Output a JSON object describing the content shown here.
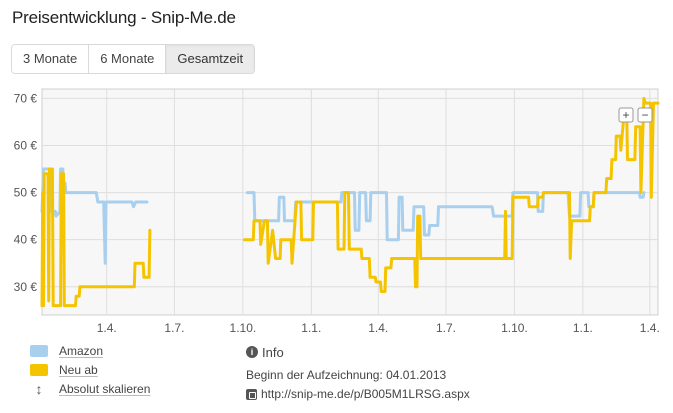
{
  "page": {
    "title": "Preisentwicklung - Snip-Me.de"
  },
  "tabs": [
    {
      "label": "3 Monate",
      "active": false
    },
    {
      "label": "6 Monate",
      "active": false
    },
    {
      "label": "Gesamtzeit",
      "active": true
    }
  ],
  "zoom": {
    "plus": "+",
    "minus": "−"
  },
  "legend": {
    "amazon": {
      "label": "Amazon",
      "color": "#a8cfee"
    },
    "neu": {
      "label": "Neu ab",
      "color": "#f5c400"
    },
    "scale": {
      "label": "Absolut skalieren",
      "icon": "updown-arrow-icon"
    }
  },
  "info": {
    "heading": "Info",
    "since": "Beginn der Aufzeichnung: 04.01.2013",
    "url": "http://snip-me.de/p/B005M1LRSG.aspx"
  },
  "chart_data": {
    "type": "line",
    "x_unit": "date",
    "xlim": [
      "2013-01-04",
      "2015-04-12"
    ],
    "ylim": [
      24,
      72
    ],
    "grid": true,
    "yticks": [
      30,
      40,
      50,
      60,
      70
    ],
    "ytick_labels": [
      "30 €",
      "40 €",
      "50 €",
      "60 €",
      "70 €"
    ],
    "xticks": [
      {
        "date": "2013-04-01",
        "label": "1.4."
      },
      {
        "date": "2013-07-01",
        "label": "1.7."
      },
      {
        "date": "2013-10-01",
        "label": "1.10."
      },
      {
        "date": "2014-01-01",
        "label": "1.1."
      },
      {
        "date": "2014-04-01",
        "label": "1.4."
      },
      {
        "date": "2014-07-01",
        "label": "1.7."
      },
      {
        "date": "2014-10-01",
        "label": "1.10."
      },
      {
        "date": "2015-01-01",
        "label": "1.1."
      },
      {
        "date": "2015-04-01",
        "label": "1.4."
      }
    ],
    "series": [
      {
        "name": "Amazon",
        "color": "#a8cfee",
        "points": [
          [
            "2013-01-04",
            46
          ],
          [
            "2013-01-06",
            55
          ],
          [
            "2013-01-14",
            55
          ],
          [
            "2013-01-15",
            46
          ],
          [
            "2013-01-22",
            46
          ],
          [
            "2013-01-23",
            45
          ],
          [
            "2013-01-28",
            46
          ],
          [
            "2013-01-29",
            55
          ],
          [
            "2013-02-01",
            55
          ],
          [
            "2013-02-02",
            51
          ],
          [
            "2013-02-04",
            52
          ],
          [
            "2013-02-05",
            50
          ],
          [
            "2013-03-18",
            50
          ],
          [
            "2013-03-20",
            48
          ],
          [
            "2013-03-28",
            48
          ],
          [
            "2013-03-30",
            35
          ],
          [
            "2013-03-31",
            48
          ],
          [
            "2013-04-20",
            48
          ],
          [
            "2013-05-05",
            48
          ],
          [
            "2013-05-07",
            47
          ],
          [
            "2013-05-10",
            48
          ],
          [
            "2013-05-25",
            48
          ],
          null,
          [
            "2013-10-07",
            50
          ],
          [
            "2013-10-16",
            50
          ],
          [
            "2013-10-17",
            44
          ],
          [
            "2013-11-18",
            44
          ],
          [
            "2013-11-19",
            49
          ],
          [
            "2013-11-25",
            49
          ],
          [
            "2013-11-26",
            44
          ],
          [
            "2013-12-10",
            44
          ],
          [
            "2013-12-11",
            48
          ],
          [
            "2014-02-10",
            48
          ],
          [
            "2014-02-11",
            50
          ],
          [
            "2014-02-28",
            50
          ],
          [
            "2014-03-01",
            42
          ],
          [
            "2014-03-06",
            42
          ],
          [
            "2014-03-07",
            50
          ],
          [
            "2014-03-15",
            50
          ],
          [
            "2014-03-16",
            44
          ],
          [
            "2014-03-21",
            44
          ],
          [
            "2014-03-22",
            50
          ],
          [
            "2014-04-12",
            50
          ],
          [
            "2014-04-13",
            40
          ],
          [
            "2014-04-28",
            40
          ],
          [
            "2014-04-29",
            49
          ],
          [
            "2014-05-03",
            49
          ],
          [
            "2014-05-04",
            42
          ],
          [
            "2014-05-18",
            42
          ],
          [
            "2014-05-19",
            47
          ],
          [
            "2014-06-01",
            47
          ],
          [
            "2014-06-02",
            41
          ],
          [
            "2014-06-08",
            41
          ],
          [
            "2014-06-09",
            43
          ],
          [
            "2014-06-20",
            43
          ],
          [
            "2014-06-21",
            47
          ],
          [
            "2014-09-01",
            47
          ],
          [
            "2014-09-03",
            45
          ],
          [
            "2014-09-28",
            45
          ],
          [
            "2014-09-29",
            50
          ],
          [
            "2014-11-01",
            50
          ],
          [
            "2014-11-02",
            46
          ],
          [
            "2014-11-08",
            46
          ],
          [
            "2014-11-09",
            50
          ],
          [
            "2014-12-12",
            50
          ],
          [
            "2014-12-14",
            45
          ],
          [
            "2014-12-28",
            45
          ],
          [
            "2014-12-29",
            50
          ],
          [
            "2015-01-08",
            50
          ],
          [
            "2015-01-09",
            47
          ],
          [
            "2015-01-15",
            47
          ],
          [
            "2015-01-16",
            50
          ],
          [
            "2015-03-18",
            50
          ],
          [
            "2015-03-19",
            49
          ],
          [
            "2015-03-23",
            49
          ],
          [
            "2015-03-24",
            50
          ]
        ]
      },
      {
        "name": "Neu ab",
        "color": "#f5c400",
        "points": [
          [
            "2013-01-04",
            26
          ],
          [
            "2013-01-05",
            50
          ],
          [
            "2013-01-06",
            26
          ],
          [
            "2013-01-07",
            54
          ],
          [
            "2013-01-12",
            54
          ],
          [
            "2013-01-13",
            27
          ],
          [
            "2013-01-14",
            55
          ],
          [
            "2013-01-18",
            55
          ],
          [
            "2013-01-19",
            26
          ],
          [
            "2013-01-29",
            26
          ],
          [
            "2013-01-30",
            54
          ],
          [
            "2013-02-02",
            54
          ],
          [
            "2013-02-03",
            26
          ],
          [
            "2013-02-18",
            26
          ],
          [
            "2013-02-19",
            28
          ],
          [
            "2013-02-23",
            28
          ],
          [
            "2013-02-24",
            30
          ],
          [
            "2013-05-08",
            30
          ],
          [
            "2013-05-09",
            35
          ],
          [
            "2013-05-20",
            35
          ],
          [
            "2013-05-21",
            32
          ],
          [
            "2013-05-28",
            32
          ],
          [
            "2013-05-29",
            42
          ],
          null,
          [
            "2013-10-03",
            40
          ],
          [
            "2013-10-15",
            40
          ],
          [
            "2013-10-16",
            44
          ],
          [
            "2013-10-24",
            44
          ],
          [
            "2013-10-25",
            39
          ],
          [
            "2013-10-30",
            44
          ],
          [
            "2013-11-03",
            44
          ],
          [
            "2013-11-04",
            35
          ],
          [
            "2013-11-10",
            42
          ],
          [
            "2013-11-14",
            36
          ],
          [
            "2013-11-20",
            36
          ],
          [
            "2013-11-21",
            40
          ],
          [
            "2013-12-05",
            40
          ],
          [
            "2013-12-06",
            35
          ],
          [
            "2013-12-12",
            48
          ],
          [
            "2013-12-18",
            48
          ],
          [
            "2013-12-19",
            40
          ],
          [
            "2014-01-03",
            40
          ],
          [
            "2014-01-04",
            48
          ],
          [
            "2014-02-05",
            48
          ],
          [
            "2014-02-06",
            38
          ],
          [
            "2014-02-14",
            38
          ],
          [
            "2014-02-15",
            50
          ],
          [
            "2014-02-20",
            50
          ],
          [
            "2014-02-21",
            38
          ],
          [
            "2014-03-09",
            38
          ],
          [
            "2014-03-10",
            36
          ],
          [
            "2014-03-20",
            36
          ],
          [
            "2014-03-21",
            32
          ],
          [
            "2014-03-28",
            32
          ],
          [
            "2014-03-29",
            31
          ],
          [
            "2014-04-04",
            31
          ],
          [
            "2014-04-05",
            29
          ],
          [
            "2014-04-10",
            29
          ],
          [
            "2014-04-11",
            34
          ],
          [
            "2014-04-18",
            34
          ],
          [
            "2014-04-19",
            36
          ],
          [
            "2014-05-20",
            36
          ],
          [
            "2014-05-21",
            30
          ],
          [
            "2014-05-23",
            30
          ],
          [
            "2014-05-24",
            45
          ],
          [
            "2014-05-27",
            45
          ],
          [
            "2014-05-28",
            36
          ],
          [
            "2014-09-18",
            36
          ],
          [
            "2014-09-19",
            46
          ],
          [
            "2014-09-20",
            36
          ],
          [
            "2014-09-28",
            36
          ],
          [
            "2014-09-29",
            49
          ],
          [
            "2014-10-20",
            49
          ],
          [
            "2014-10-21",
            47
          ],
          [
            "2014-11-01",
            47
          ],
          [
            "2014-11-02",
            49
          ],
          [
            "2014-11-08",
            49
          ],
          [
            "2014-11-09",
            50
          ],
          [
            "2014-12-14",
            50
          ],
          [
            "2014-12-15",
            36
          ],
          [
            "2014-12-17",
            44
          ],
          [
            "2015-01-10",
            44
          ],
          [
            "2015-01-11",
            47
          ],
          [
            "2015-01-15",
            47
          ],
          [
            "2015-01-16",
            50
          ],
          [
            "2015-02-01",
            50
          ],
          [
            "2015-02-02",
            53
          ],
          [
            "2015-02-08",
            53
          ],
          [
            "2015-02-09",
            57
          ],
          [
            "2015-02-14",
            57
          ],
          [
            "2015-02-15",
            62
          ],
          [
            "2015-02-20",
            62
          ],
          [
            "2015-02-21",
            59
          ],
          [
            "2015-02-25",
            66
          ],
          [
            "2015-03-01",
            66
          ],
          [
            "2015-03-02",
            57
          ],
          [
            "2015-03-12",
            57
          ],
          [
            "2015-03-13",
            64
          ],
          [
            "2015-03-19",
            64
          ],
          [
            "2015-03-20",
            50
          ],
          [
            "2015-03-24",
            70
          ],
          [
            "2015-03-26",
            69
          ],
          [
            "2015-04-02",
            69
          ],
          [
            "2015-04-03",
            49
          ],
          [
            "2015-04-06",
            69
          ],
          [
            "2015-04-12",
            69
          ]
        ]
      }
    ]
  }
}
